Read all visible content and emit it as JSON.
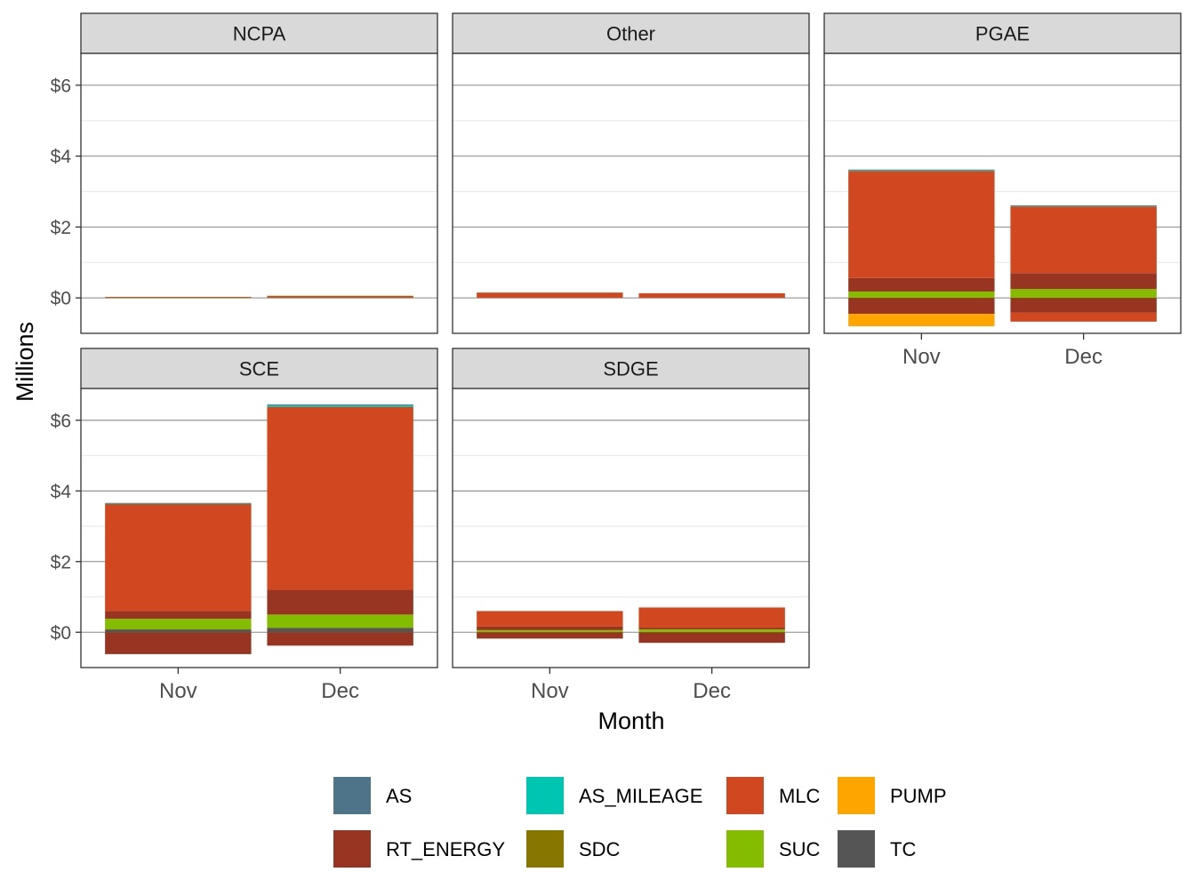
{
  "chart_data": {
    "type": "bar",
    "stacked": true,
    "facets": [
      "NCPA",
      "Other",
      "PGAE",
      "SCE",
      "SDGE"
    ],
    "categories": [
      "Nov",
      "Dec"
    ],
    "xlabel": "Month",
    "ylabel": "Millions",
    "ylim": [
      -1.0,
      6.9
    ],
    "y_ticks": [
      0,
      2,
      4,
      6
    ],
    "y_tick_labels": [
      "$0",
      "$2",
      "$4",
      "$6"
    ],
    "grid": true,
    "legend_position": "bottom",
    "legend": [
      {
        "name": "AS",
        "color": "#4E7489"
      },
      {
        "name": "AS_MILEAGE",
        "color": "#00C5B1"
      },
      {
        "name": "MLC",
        "color": "#D04720"
      },
      {
        "name": "PUMP",
        "color": "#FFA500"
      },
      {
        "name": "RT_ENERGY",
        "color": "#973522"
      },
      {
        "name": "SDC",
        "color": "#877700"
      },
      {
        "name": "SUC",
        "color": "#84BD00"
      },
      {
        "name": "TC",
        "color": "#555555"
      }
    ],
    "panels": [
      {
        "facet": "NCPA",
        "bars": [
          {
            "category": "Nov",
            "positive": [
              {
                "name": "MLC",
                "value": 0.02
              },
              {
                "name": "SDC",
                "value": 0.01
              }
            ],
            "negative": []
          },
          {
            "category": "Dec",
            "positive": [
              {
                "name": "MLC",
                "value": 0.04
              },
              {
                "name": "SDC",
                "value": 0.02
              }
            ],
            "negative": []
          }
        ]
      },
      {
        "facet": "Other",
        "bars": [
          {
            "category": "Nov",
            "positive": [
              {
                "name": "MLC",
                "value": 0.15
              }
            ],
            "negative": []
          },
          {
            "category": "Dec",
            "positive": [
              {
                "name": "MLC",
                "value": 0.13
              }
            ],
            "negative": []
          }
        ]
      },
      {
        "facet": "PGAE",
        "bars": [
          {
            "category": "Nov",
            "positive": [
              {
                "name": "SUC",
                "value": 0.18
              },
              {
                "name": "RT_ENERGY",
                "value": 0.38
              },
              {
                "name": "MLC",
                "value": 3.02
              },
              {
                "name": "AS_MILEAGE",
                "value": 0.02
              },
              {
                "name": "AS",
                "value": 0.02
              }
            ],
            "negative": [
              {
                "name": "RT_ENERGY",
                "value": -0.45
              },
              {
                "name": "PUMP",
                "value": -0.35
              }
            ]
          },
          {
            "category": "Dec",
            "positive": [
              {
                "name": "SUC",
                "value": 0.25
              },
              {
                "name": "RT_ENERGY",
                "value": 0.45
              },
              {
                "name": "MLC",
                "value": 1.88
              },
              {
                "name": "AS_MILEAGE",
                "value": 0.02
              },
              {
                "name": "AS",
                "value": 0.01
              }
            ],
            "negative": [
              {
                "name": "RT_ENERGY",
                "value": -0.42
              },
              {
                "name": "MLC",
                "value": -0.25
              }
            ]
          }
        ]
      },
      {
        "facet": "SCE",
        "bars": [
          {
            "category": "Nov",
            "positive": [
              {
                "name": "TC",
                "value": 0.08
              },
              {
                "name": "SUC",
                "value": 0.3
              },
              {
                "name": "RT_ENERGY",
                "value": 0.22
              },
              {
                "name": "MLC",
                "value": 3.03
              },
              {
                "name": "AS_MILEAGE",
                "value": 0.02
              },
              {
                "name": "AS",
                "value": 0.01
              }
            ],
            "negative": [
              {
                "name": "RT_ENERGY",
                "value": -0.62
              }
            ]
          },
          {
            "category": "Dec",
            "positive": [
              {
                "name": "TC",
                "value": 0.12
              },
              {
                "name": "SUC",
                "value": 0.38
              },
              {
                "name": "RT_ENERGY",
                "value": 0.7
              },
              {
                "name": "MLC",
                "value": 5.18
              },
              {
                "name": "AS_MILEAGE",
                "value": 0.05
              },
              {
                "name": "AS",
                "value": 0.02
              }
            ],
            "negative": [
              {
                "name": "RT_ENERGY",
                "value": -0.38
              }
            ]
          }
        ]
      },
      {
        "facet": "SDGE",
        "bars": [
          {
            "category": "Nov",
            "positive": [
              {
                "name": "SUC",
                "value": 0.06
              },
              {
                "name": "RT_ENERGY",
                "value": 0.1
              },
              {
                "name": "MLC",
                "value": 0.44
              }
            ],
            "negative": [
              {
                "name": "RT_ENERGY",
                "value": -0.18
              }
            ]
          },
          {
            "category": "Dec",
            "positive": [
              {
                "name": "SUC",
                "value": 0.08
              },
              {
                "name": "RT_ENERGY",
                "value": 0.05
              },
              {
                "name": "MLC",
                "value": 0.57
              }
            ],
            "negative": [
              {
                "name": "RT_ENERGY",
                "value": -0.3
              }
            ]
          }
        ]
      }
    ]
  }
}
